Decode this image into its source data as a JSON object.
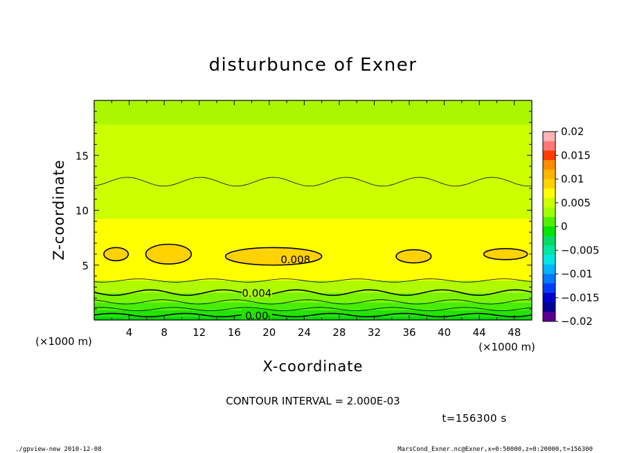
{
  "chart_data": {
    "type": "heatmap",
    "title": "disturbunce of Exner",
    "xlabel": "X-coordinate",
    "ylabel": "Z-coordinate",
    "x_unit": "(×1000 m)",
    "y_unit": "(×1000 m)",
    "xlim": [
      0,
      50
    ],
    "ylim": [
      0,
      20
    ],
    "x_ticks": [
      4,
      8,
      12,
      16,
      20,
      24,
      28,
      32,
      36,
      40,
      44,
      48
    ],
    "y_ticks": [
      5,
      10,
      15
    ],
    "colorbar": {
      "labels": [
        "0.02",
        "0.015",
        "0.01",
        "0.005",
        "0",
        "−0.005",
        "−0.01",
        "−0.015",
        "−0.02"
      ],
      "values": [
        0.02,
        0.015,
        0.01,
        0.005,
        0,
        -0.005,
        -0.01,
        -0.015,
        -0.02
      ],
      "colors": [
        "#ffb4b4",
        "#ff7878",
        "#ff3c00",
        "#ff8c00",
        "#ffb400",
        "#ffd200",
        "#ffff00",
        "#ccff00",
        "#a0ff00",
        "#50f000",
        "#00e600",
        "#00dc64",
        "#00e6a0",
        "#00e6e6",
        "#00b4ff",
        "#0078ff",
        "#003cff",
        "#0000c8",
        "#000096",
        "#5a008c"
      ]
    },
    "bands": [
      {
        "z": [
          0.0,
          0.3
        ],
        "color": "#00d800"
      },
      {
        "z": [
          0.3,
          0.9
        ],
        "color": "#22e400"
      },
      {
        "z": [
          0.9,
          1.6
        ],
        "color": "#48ee00"
      },
      {
        "z": [
          1.6,
          2.5
        ],
        "color": "#7cf400"
      },
      {
        "z": [
          2.5,
          3.6
        ],
        "color": "#b0fa00"
      },
      {
        "z": [
          3.6,
          9.2
        ],
        "color": "#ffff00"
      },
      {
        "z": [
          9.2,
          17.8
        ],
        "color": "#ccff00"
      },
      {
        "z": [
          17.8,
          20.0
        ],
        "color": "#aaf700"
      }
    ],
    "contour_lines": [
      {
        "level": "0.00",
        "z": 0.45,
        "amp": 0.15,
        "bold": true,
        "label_x": 17.0
      },
      {
        "z": 1.0,
        "amp": 0.15,
        "bold": false
      },
      {
        "z": 1.65,
        "amp": 0.2,
        "bold": false
      },
      {
        "level": "0.004",
        "z": 2.5,
        "amp": 0.25,
        "bold": true,
        "label_x": 17.0
      },
      {
        "z": 3.6,
        "amp": 0.15,
        "bold": false
      },
      {
        "z": 12.6,
        "amp": 0.4,
        "bold": false
      }
    ],
    "closed_contours": [
      {
        "level": "0.008",
        "cx": 2.5,
        "cz": 6.0,
        "rx": 1.4,
        "rz": 0.6
      },
      {
        "level": "0.008",
        "cx": 8.5,
        "cz": 6.0,
        "rx": 2.6,
        "rz": 0.9
      },
      {
        "level": "0.008",
        "cx": 20.5,
        "cz": 5.8,
        "rx": 5.5,
        "rz": 0.8,
        "label": "0.008",
        "label_x": 23.0
      },
      {
        "level": "0.008",
        "cx": 36.5,
        "cz": 5.8,
        "rx": 2.0,
        "rz": 0.6
      },
      {
        "level": "0.008",
        "cx": 47.0,
        "cz": 6.0,
        "rx": 2.5,
        "rz": 0.5
      }
    ],
    "grid": false,
    "legend": "colorbar-right"
  },
  "contour_interval": "CONTOUR INTERVAL = 2.000E-03",
  "time_label": "t=156300 s",
  "footer_left": "./gpview-new   2010-12-08",
  "footer_right": "MarsCond_Exner.nc@Exner,x=0:50000,z=0:20000,t=156300"
}
